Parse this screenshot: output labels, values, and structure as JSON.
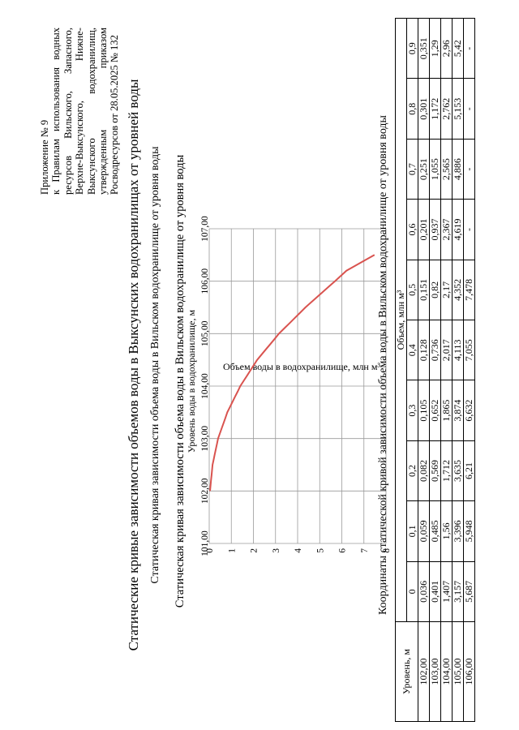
{
  "annex": {
    "number": "Приложение № 9",
    "text": "к Правилам использования водных ресурсов Вильского, Запасного, Верхне-Выксунского, Нижне-Выксунского водохранилищ, утвержденным приказом Росводресурсов от 28.05.2025 № 132"
  },
  "main_title": "Статические кривые зависимости объемов воды в Выксунских водохранилищах от уровней воды",
  "subtitle": "Статическая кривая зависимости объема воды в Вильском водохранилище от уровня воды",
  "chart_data": {
    "type": "line",
    "title": "Статическая кривая зависимости объема воды в Вильском водохранилище от уровня воды",
    "xlabel": "Объем воды в водохранилище, млн м³",
    "ylabel": "Уровень воды в водохранилище, м",
    "xlim": [
      0,
      8
    ],
    "ylim": [
      101,
      107
    ],
    "x_ticks": [
      "0",
      "1",
      "2",
      "3",
      "4",
      "5",
      "6",
      "7",
      "8"
    ],
    "y_ticks": [
      "101,00",
      "102,00",
      "103,00",
      "104,00",
      "105,00",
      "106,00",
      "107,00"
    ],
    "grid": true,
    "color": "#d9534f",
    "series": [
      {
        "name": "Уровень воды",
        "x": [
          0.036,
          0.059,
          0.082,
          0.105,
          0.128,
          0.151,
          0.201,
          0.251,
          0.301,
          0.351,
          0.401,
          0.485,
          0.569,
          0.652,
          0.736,
          0.82,
          0.937,
          1.055,
          1.172,
          1.29,
          1.407,
          1.56,
          1.712,
          1.865,
          2.017,
          2.17,
          2.367,
          2.565,
          2.762,
          2.96,
          3.157,
          3.396,
          3.635,
          3.874,
          4.113,
          4.352,
          4.619,
          4.886,
          5.153,
          5.42,
          5.687,
          5.948,
          6.21,
          6.632,
          7.055,
          7.478
        ],
        "y": [
          102.0,
          102.1,
          102.2,
          102.3,
          102.4,
          102.5,
          102.6,
          102.7,
          102.8,
          102.9,
          103.0,
          103.1,
          103.2,
          103.3,
          103.4,
          103.5,
          103.6,
          103.7,
          103.8,
          103.9,
          104.0,
          104.1,
          104.2,
          104.3,
          104.4,
          104.5,
          104.6,
          104.7,
          104.8,
          104.9,
          105.0,
          105.1,
          105.2,
          105.3,
          105.4,
          105.5,
          105.6,
          105.7,
          105.8,
          105.9,
          106.0,
          106.1,
          106.2,
          106.3,
          106.4,
          106.5
        ]
      }
    ]
  },
  "table": {
    "caption": "Координаты статической кривой зависимости объема воды в Вильском водохранилище от уровня воды",
    "level_header": "Уровень, м",
    "volume_header": "Объем, млн м³",
    "columns": [
      "0",
      "0,1",
      "0,2",
      "0,3",
      "0,4",
      "0,5",
      "0,6",
      "0,7",
      "0,8",
      "0,9"
    ],
    "rows": [
      {
        "level": "102,00",
        "values": [
          "0,036",
          "0,059",
          "0,082",
          "0,105",
          "0,128",
          "0,151",
          "0,201",
          "0,251",
          "0,301",
          "0,351"
        ]
      },
      {
        "level": "103,00",
        "values": [
          "0,401",
          "0,485",
          "0,569",
          "0,652",
          "0,736",
          "0,82",
          "0,937",
          "1,055",
          "1,172",
          "1,29"
        ]
      },
      {
        "level": "104,00",
        "values": [
          "1,407",
          "1,56",
          "1,712",
          "1,865",
          "2,017",
          "2,17",
          "2,367",
          "2,565",
          "2,762",
          "2,96"
        ]
      },
      {
        "level": "105,00",
        "values": [
          "3,157",
          "3,396",
          "3,635",
          "3,874",
          "4,113",
          "4,352",
          "4,619",
          "4,886",
          "5,153",
          "5,42"
        ]
      },
      {
        "level": "106,00",
        "values": [
          "5,687",
          "5,948",
          "6,21",
          "6,632",
          "7,055",
          "7,478",
          "-",
          "-",
          "-",
          "-"
        ]
      }
    ]
  }
}
